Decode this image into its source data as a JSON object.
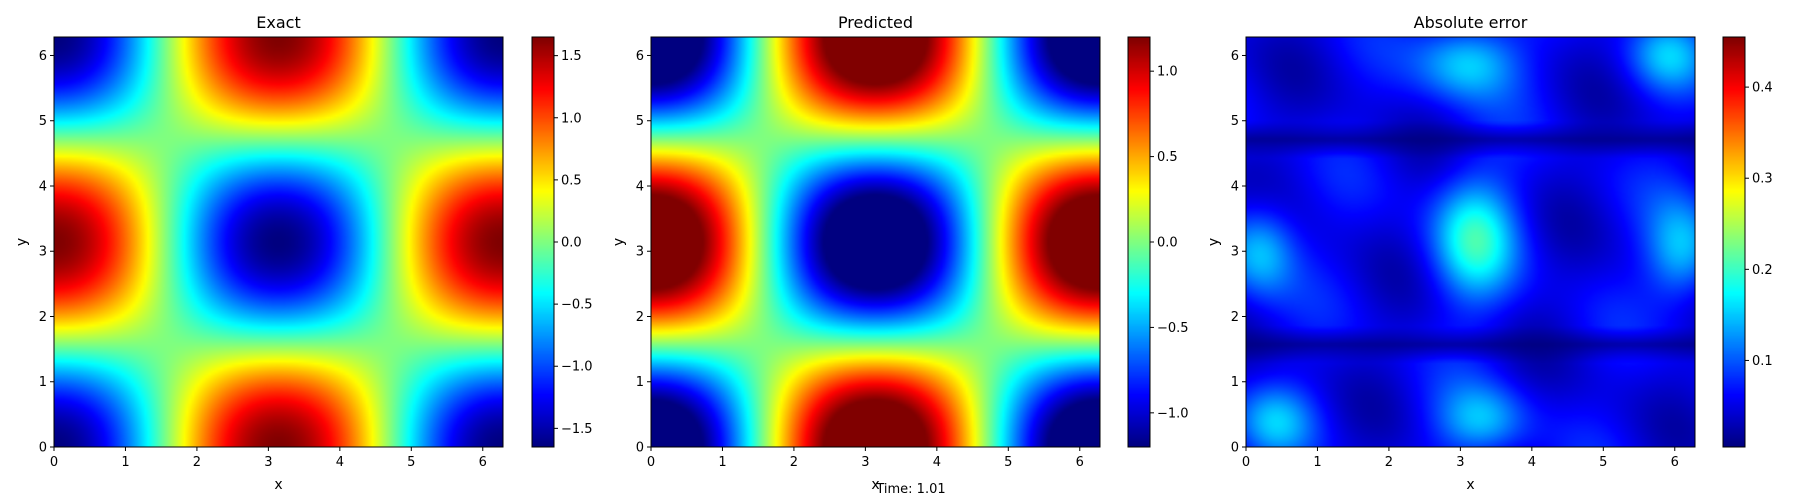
{
  "footer": "Time: 1.01",
  "chart_data": [
    {
      "type": "heatmap",
      "title": "Exact",
      "xlabel": "x",
      "ylabel": "y",
      "xlim": [
        0,
        6.2832
      ],
      "ylim": [
        0,
        6.2832
      ],
      "xticks": [
        "0",
        "1",
        "2",
        "3",
        "4",
        "5",
        "6"
      ],
      "yticks": [
        "0",
        "1",
        "2",
        "3",
        "4",
        "5",
        "6"
      ],
      "colormap": "jet",
      "color_range": [
        -1.65,
        1.65
      ],
      "field": "-1.65*cos(x)*cos(y)",
      "colorbar_ticks": [
        "−1.5",
        "−1.0",
        "−0.5",
        "0.0",
        "0.5",
        "1.0",
        "1.5"
      ]
    },
    {
      "type": "heatmap",
      "title": "Predicted",
      "xlabel": "x",
      "ylabel": "y",
      "xlim": [
        0,
        6.2832
      ],
      "ylim": [
        0,
        6.2832
      ],
      "xticks": [
        "0",
        "1",
        "2",
        "3",
        "4",
        "5",
        "6"
      ],
      "yticks": [
        "0",
        "1",
        "2",
        "3",
        "4",
        "5",
        "6"
      ],
      "colormap": "jet",
      "color_range": [
        -1.2,
        1.2
      ],
      "field": "-1.6*cos(x)*cos(y), clipped to color range",
      "colorbar_ticks": [
        "−1.0",
        "−0.5",
        "0.0",
        "0.5",
        "1.0"
      ]
    },
    {
      "type": "heatmap",
      "title": "Absolute error",
      "xlabel": "x",
      "ylabel": "y",
      "xlim": [
        0,
        6.2832
      ],
      "ylim": [
        0,
        6.2832
      ],
      "xticks": [
        "0",
        "1",
        "2",
        "3",
        "4",
        "5",
        "6"
      ],
      "yticks": [
        "0",
        "1",
        "2",
        "3",
        "4",
        "5",
        "6"
      ],
      "colormap": "jet",
      "color_range": [
        0.005,
        0.455
      ],
      "field": "|Exact - Predicted|, blotchy",
      "colorbar_ticks": [
        "0.1",
        "0.2",
        "0.3",
        "0.4"
      ]
    }
  ]
}
